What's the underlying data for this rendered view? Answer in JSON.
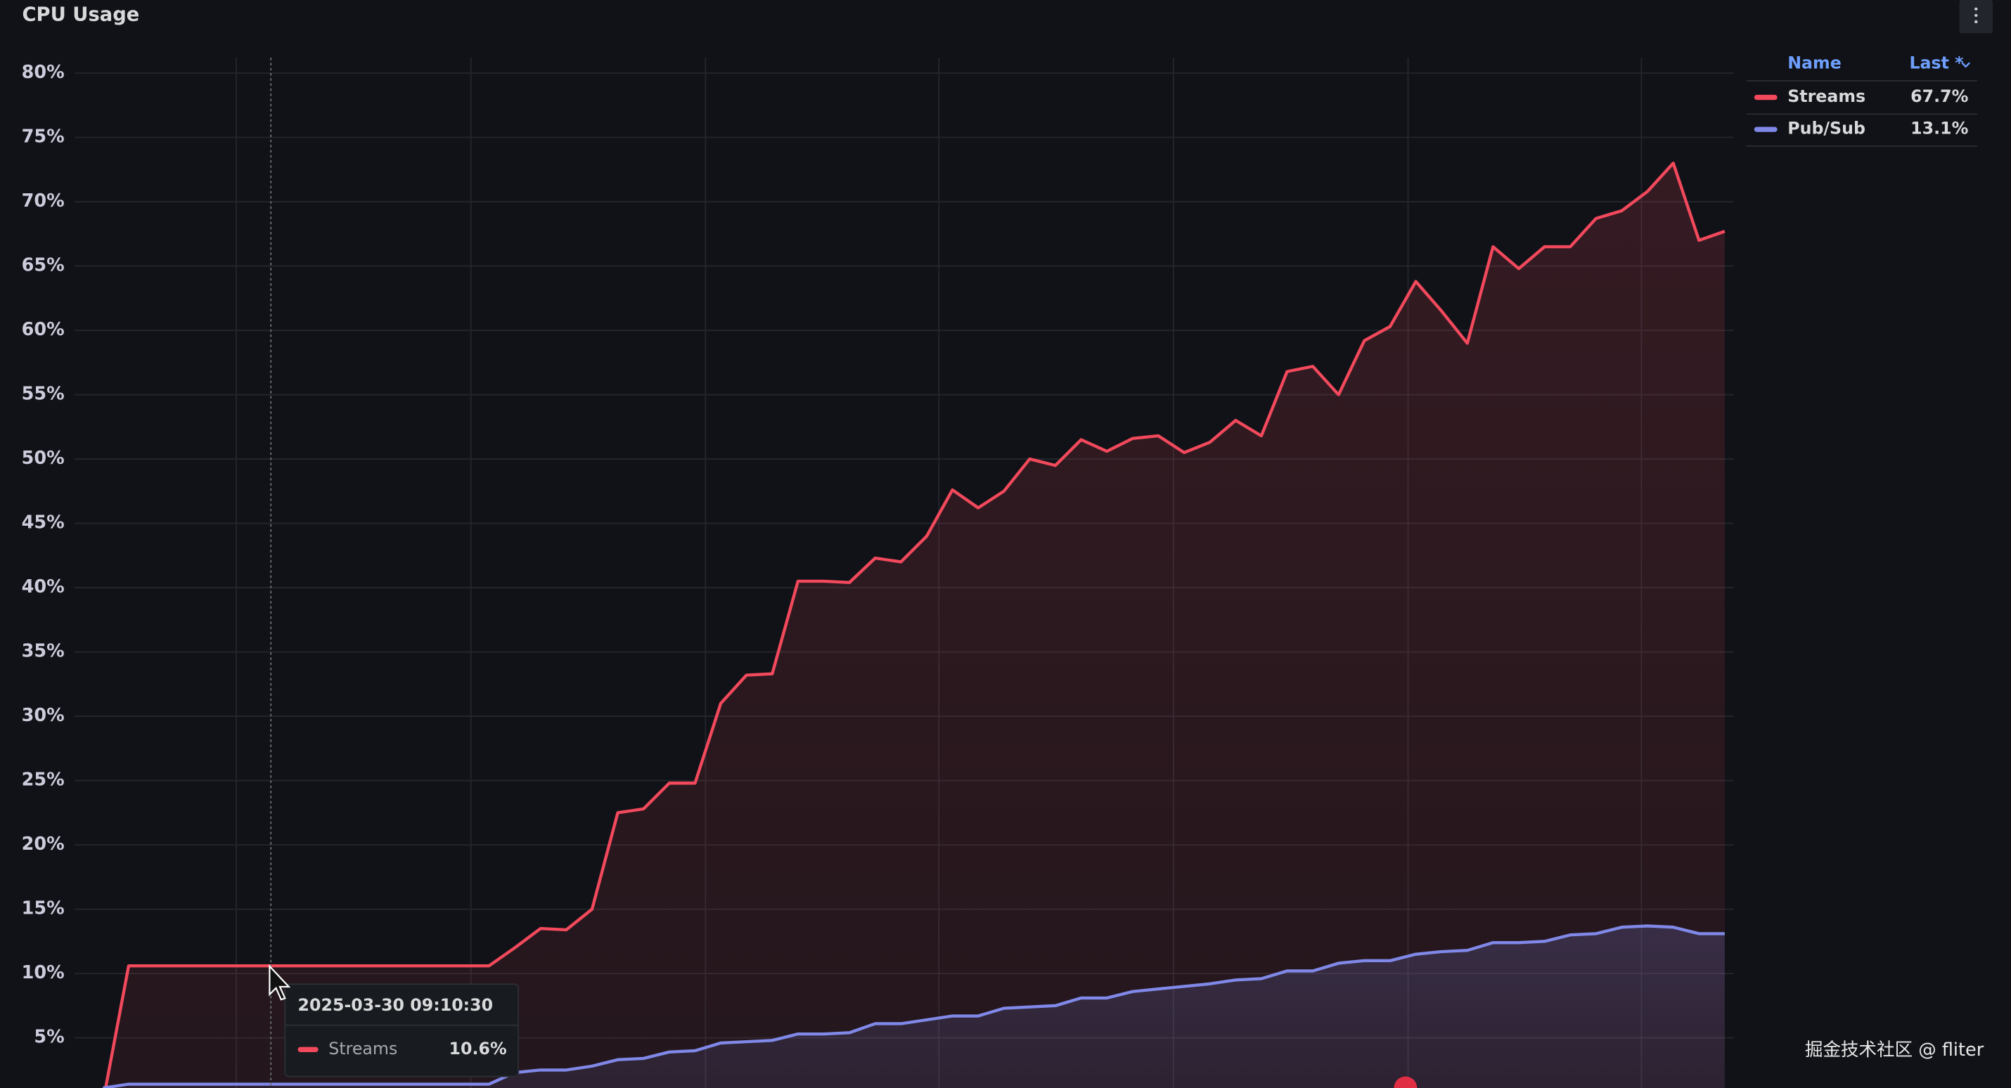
{
  "title": "CPU Usage",
  "chart_data": {
    "type": "line",
    "series": [
      {
        "name": "Streams",
        "color": "#f2495c",
        "values": [
          0,
          10.6,
          10.6,
          10.6,
          10.6,
          10.6,
          10.6,
          10.6,
          10.6,
          10.6,
          10.6,
          10.6,
          10.6,
          10.6,
          10.6,
          10.6,
          12,
          13.5,
          13.4,
          15,
          22.5,
          22.8,
          24.8,
          24.8,
          31,
          33.2,
          33.3,
          40.5,
          40.5,
          40.4,
          42.3,
          42,
          44,
          47.6,
          46.2,
          47.5,
          50,
          49.5,
          51.5,
          50.6,
          51.6,
          51.8,
          50.5,
          51.3,
          53,
          51.8,
          56.8,
          57.2,
          55,
          59.2,
          60.3,
          63.8,
          61.5,
          59,
          66.5,
          64.8,
          66.5,
          66.5,
          68.7,
          69.3,
          70.8,
          73,
          67,
          67.7
        ]
      },
      {
        "name": "Pub/Sub",
        "color": "#8088e8",
        "values": [
          1.1,
          1.4,
          1.4,
          1.4,
          1.4,
          1.4,
          1.4,
          1.4,
          1.4,
          1.4,
          1.4,
          1.4,
          1.4,
          1.4,
          1.4,
          1.4,
          2.3,
          2.5,
          2.5,
          2.8,
          3.3,
          3.4,
          3.9,
          4.0,
          4.6,
          4.7,
          4.8,
          5.3,
          5.3,
          5.4,
          6.1,
          6.1,
          6.4,
          6.7,
          6.7,
          7.3,
          7.4,
          7.5,
          8.1,
          8.1,
          8.6,
          8.8,
          9.0,
          9.2,
          9.5,
          9.6,
          10.2,
          10.2,
          10.8,
          11.0,
          11.0,
          11.5,
          11.7,
          11.8,
          12.4,
          12.4,
          12.5,
          13.0,
          13.1,
          13.6,
          13.7,
          13.6,
          13.1,
          13.1
        ]
      }
    ],
    "ylim": [
      1.1,
      81.2
    ],
    "yticks": [
      {
        "value": 5,
        "label": "5%"
      },
      {
        "value": 10,
        "label": "10%"
      },
      {
        "value": 15,
        "label": "15%"
      },
      {
        "value": 20,
        "label": "20%"
      },
      {
        "value": 25,
        "label": "25%"
      },
      {
        "value": 30,
        "label": "30%"
      },
      {
        "value": 35,
        "label": "35%"
      },
      {
        "value": 40,
        "label": "40%"
      },
      {
        "value": 45,
        "label": "45%"
      },
      {
        "value": 50,
        "label": "50%"
      },
      {
        "value": 55,
        "label": "55%"
      },
      {
        "value": 60,
        "label": "60%"
      },
      {
        "value": 65,
        "label": "65%"
      },
      {
        "value": 70,
        "label": "70%"
      },
      {
        "value": 75,
        "label": "75%"
      },
      {
        "value": 80,
        "label": "80%"
      }
    ],
    "grid": true,
    "legend": {
      "header": [
        "Name",
        "Last *"
      ],
      "last": [
        "67.7%",
        "13.1%"
      ]
    },
    "tooltip": {
      "time": "2025-03-30 09:10:30",
      "value": "10.6%"
    }
  },
  "watermark": "掘金技术社区 @ fliter"
}
